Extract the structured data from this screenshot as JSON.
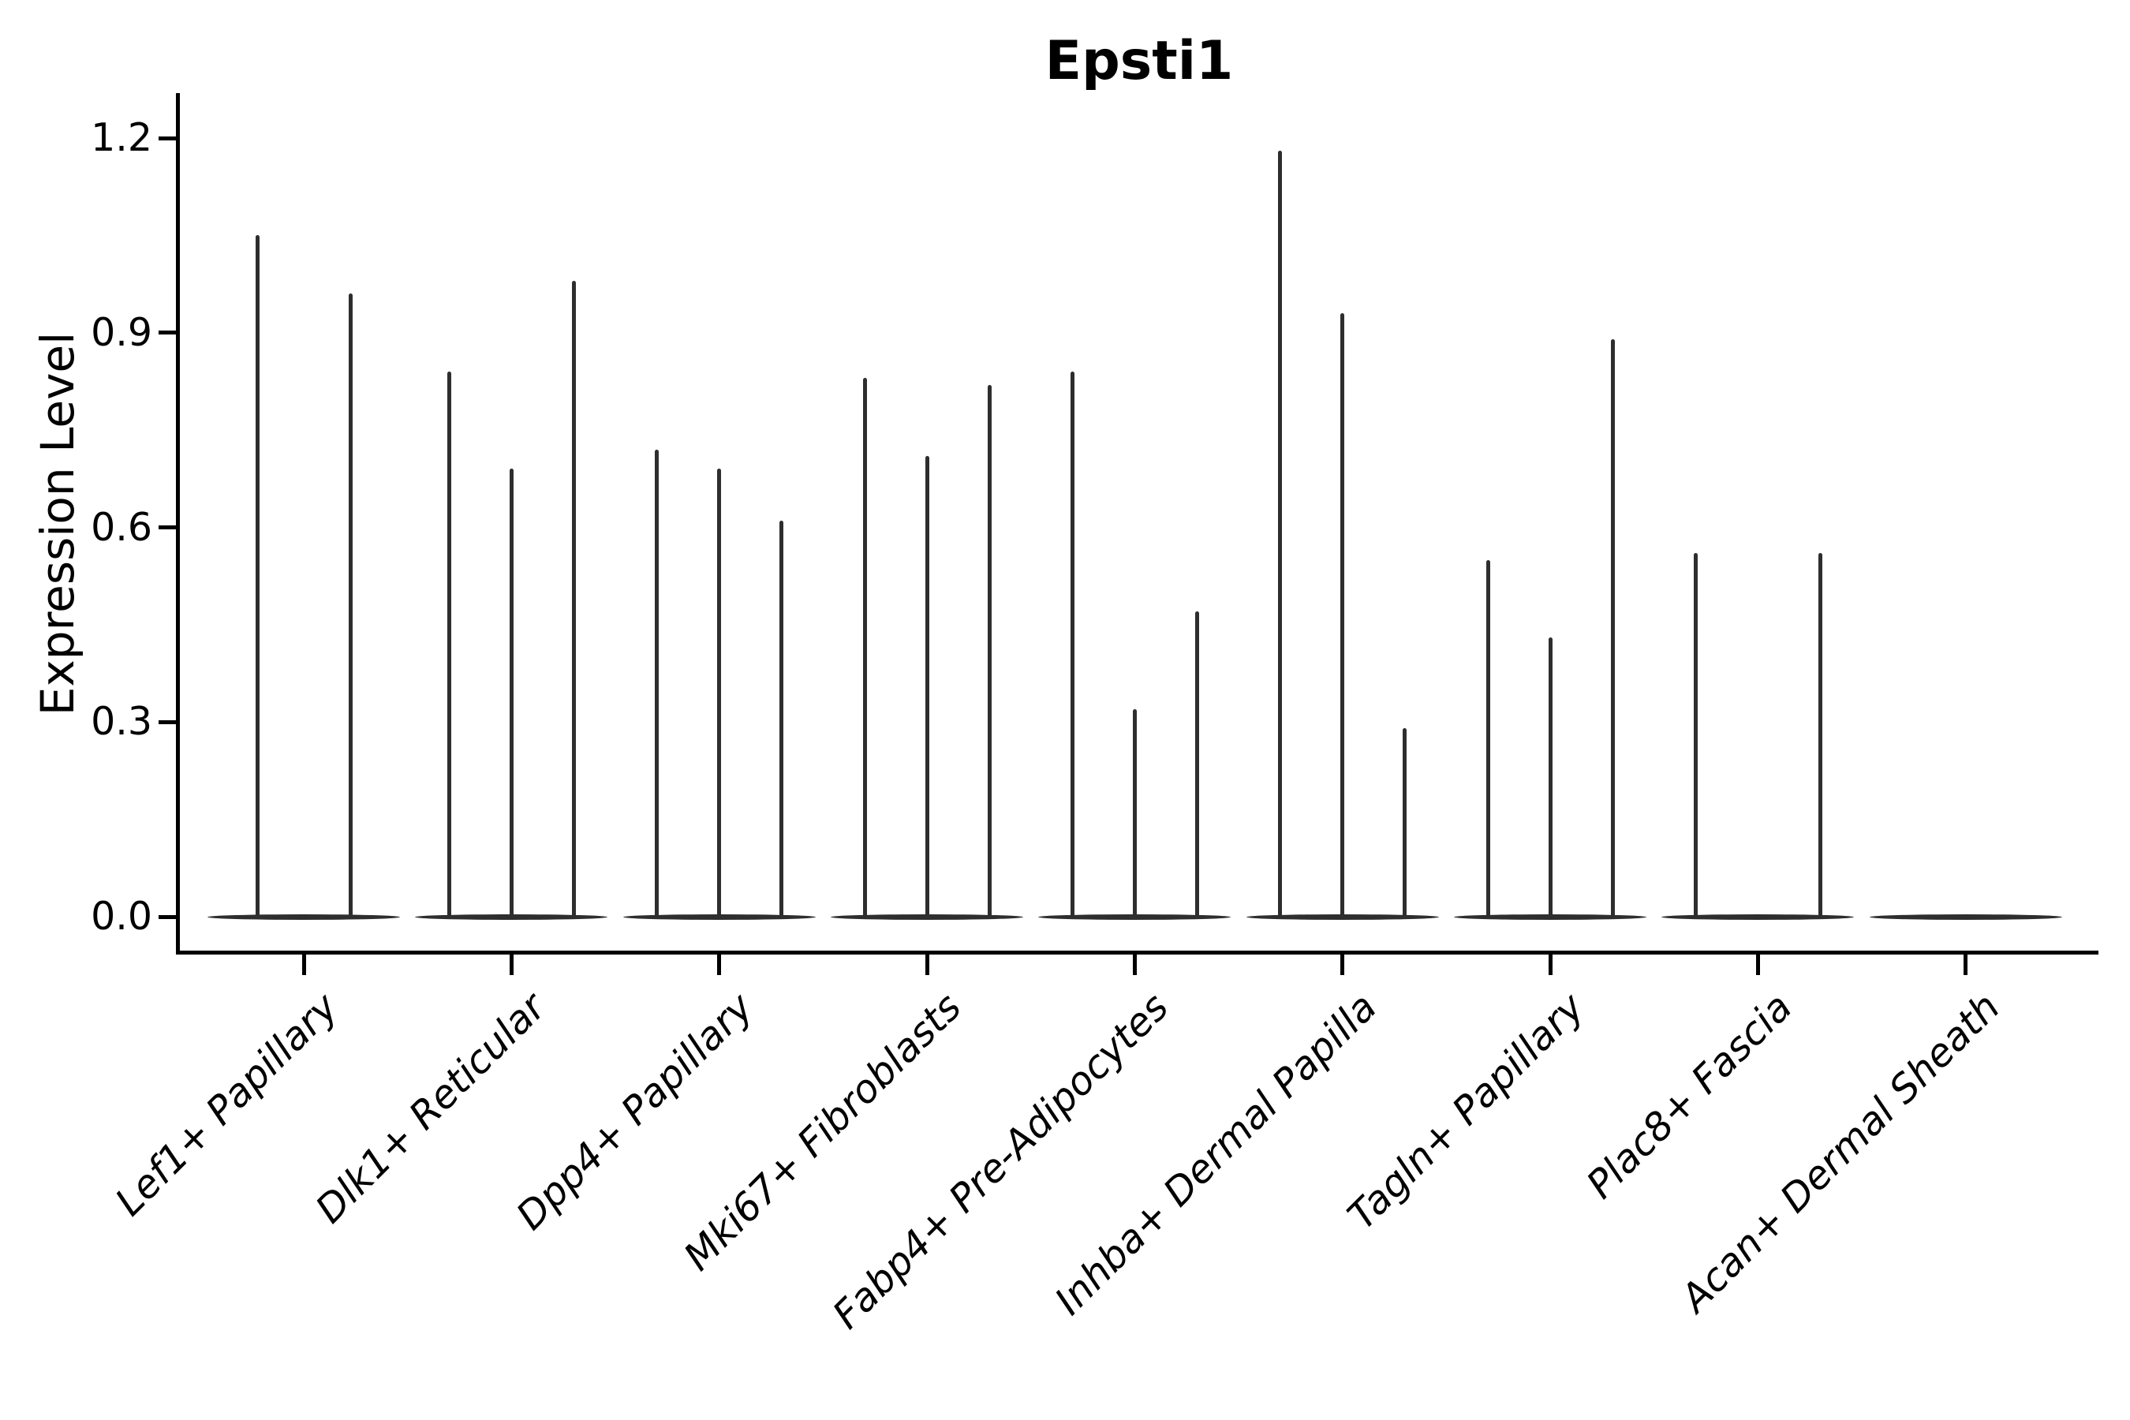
{
  "title": "Epsti1",
  "colors": {
    "violin": "#2e2e2e",
    "axis": "#000000",
    "background": "#ffffff"
  },
  "chart_data": {
    "type": "violin",
    "title": "Epsti1",
    "xlabel": "",
    "ylabel": "Expression Level",
    "legend": "none",
    "grid": false,
    "ylim": [
      -0.06,
      1.27
    ],
    "yticks": [
      0.0,
      0.3,
      0.6,
      0.9,
      1.2
    ],
    "ytick_labels": [
      "0.0",
      "0.3",
      "0.6",
      "0.9",
      "1.2"
    ],
    "xtick_rotation_deg": 45,
    "categories": [
      "Lef1+ Papillary",
      "Dlk1+ Reticular",
      "Dpp4+ Papillary",
      "Mki67+ Fibroblasts",
      "Fabp4+ Pre-Adipocytes",
      "Inhba+ Dermal Papilla",
      "Tagln+ Papillary",
      "Plac8+ Fascia",
      "Acan+ Dermal Sheath"
    ],
    "series": [
      {
        "category": "Lef1+ Papillary",
        "violin_peak_expression": [
          1.05,
          0.96
        ]
      },
      {
        "category": "Dlk1+ Reticular",
        "violin_peak_expression": [
          0.84,
          0.69,
          0.98
        ]
      },
      {
        "category": "Dpp4+ Papillary",
        "violin_peak_expression": [
          0.72,
          0.69,
          0.61
        ]
      },
      {
        "category": "Mki67+ Fibroblasts",
        "violin_peak_expression": [
          0.83,
          0.71,
          0.82
        ]
      },
      {
        "category": "Fabp4+ Pre-Adipocytes",
        "violin_peak_expression": [
          0.84,
          0.32,
          0.47
        ]
      },
      {
        "category": "Inhba+ Dermal Papilla",
        "violin_peak_expression": [
          1.18,
          0.93,
          0.29
        ]
      },
      {
        "category": "Tagln+ Papillary",
        "violin_peak_expression": [
          0.55,
          0.43,
          0.89
        ]
      },
      {
        "category": "Plac8+ Fascia",
        "violin_peak_expression": [
          0.56,
          0.0,
          0.56
        ]
      },
      {
        "category": "Acan+ Dermal Sheath",
        "violin_peak_expression": [
          0.0,
          0.0,
          0.0
        ]
      }
    ]
  }
}
